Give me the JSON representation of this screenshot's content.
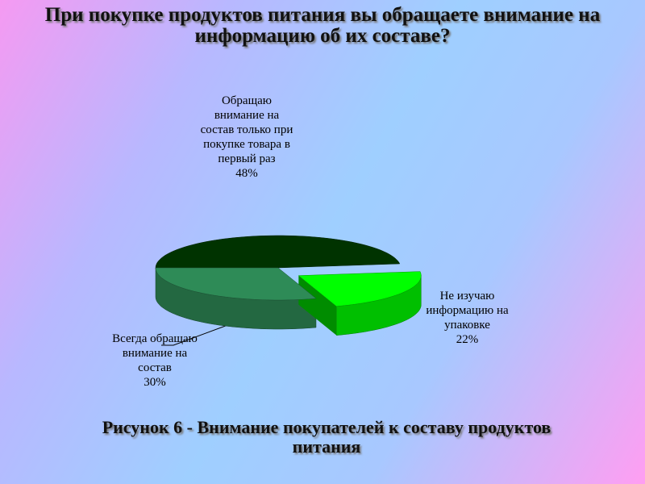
{
  "chart_data": {
    "type": "pie3d",
    "title": "При покупке продуктов питания вы обращаете внимание на информацию об их составе?",
    "caption": "Рисунок 6 - Внимание покупателей к составу продуктов питания",
    "categories": [
      "Обращаю внимание на состав только при покупке товара в первый раз",
      "Всегда обращаю внимание на состав",
      "Не изучаю информацию на упаковке"
    ],
    "values": [
      48,
      30,
      22
    ],
    "value_labels": [
      "48%",
      "30%",
      "22%"
    ],
    "colors": [
      "#003300",
      "#2e8b57",
      "#00ff00"
    ]
  }
}
